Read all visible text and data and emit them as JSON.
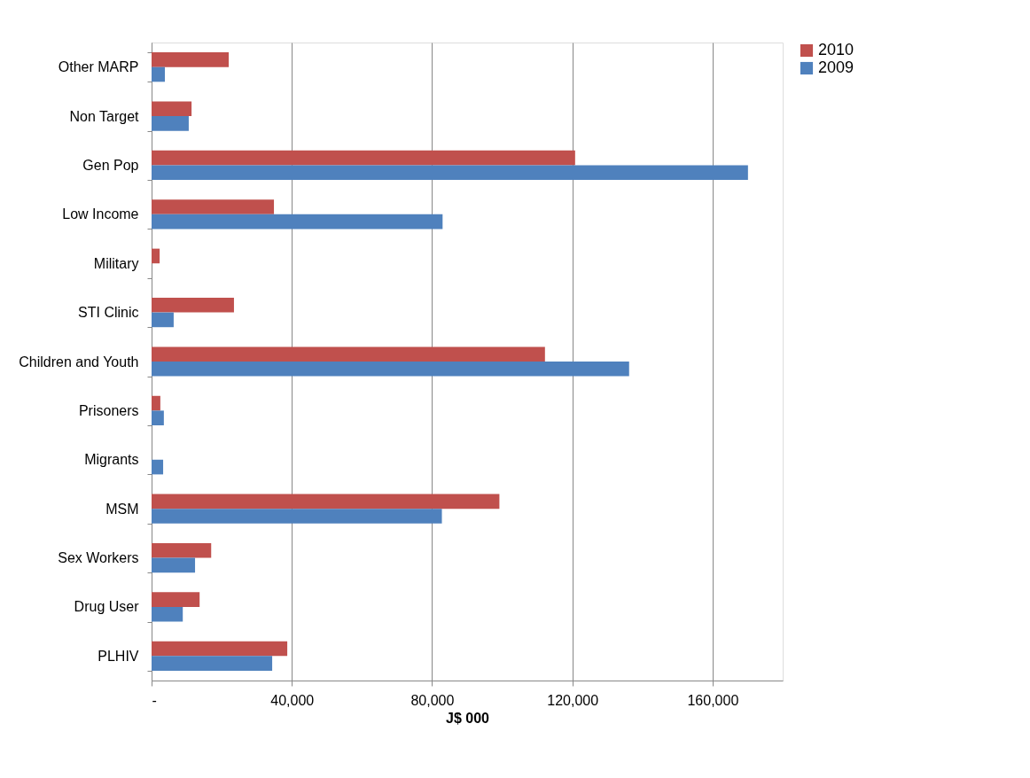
{
  "chart_data": {
    "type": "bar",
    "orientation": "horizontal",
    "xlabel": "J$ 000",
    "categories": [
      "Other MARP",
      "Non Target",
      "Gen Pop",
      "Low Income",
      "Military",
      "STI Clinic",
      "Children and Youth",
      "Prisoners",
      "Migrants",
      "MSM",
      "Sex Workers",
      "Drug User",
      "PLHIV"
    ],
    "series": [
      {
        "name": "2010",
        "color": "#c0504d",
        "values": [
          22000,
          11400,
          120800,
          34900,
          2300,
          23500,
          112200,
          2500,
          0,
          99200,
          17000,
          13700,
          38700
        ]
      },
      {
        "name": "2009",
        "color": "#4f81bd",
        "values": [
          3800,
          10600,
          170100,
          83000,
          0,
          6300,
          136200,
          3500,
          3300,
          82800,
          12400,
          8900,
          34400
        ]
      }
    ],
    "xlim": [
      0,
      180000
    ],
    "xticks": [
      {
        "value": 0,
        "label": "-"
      },
      {
        "value": 40000,
        "label": "40,000"
      },
      {
        "value": 80000,
        "label": "80,000"
      },
      {
        "value": 120000,
        "label": "120,000"
      },
      {
        "value": 160000,
        "label": "160,000"
      }
    ],
    "grid": "x",
    "legend": "right"
  }
}
